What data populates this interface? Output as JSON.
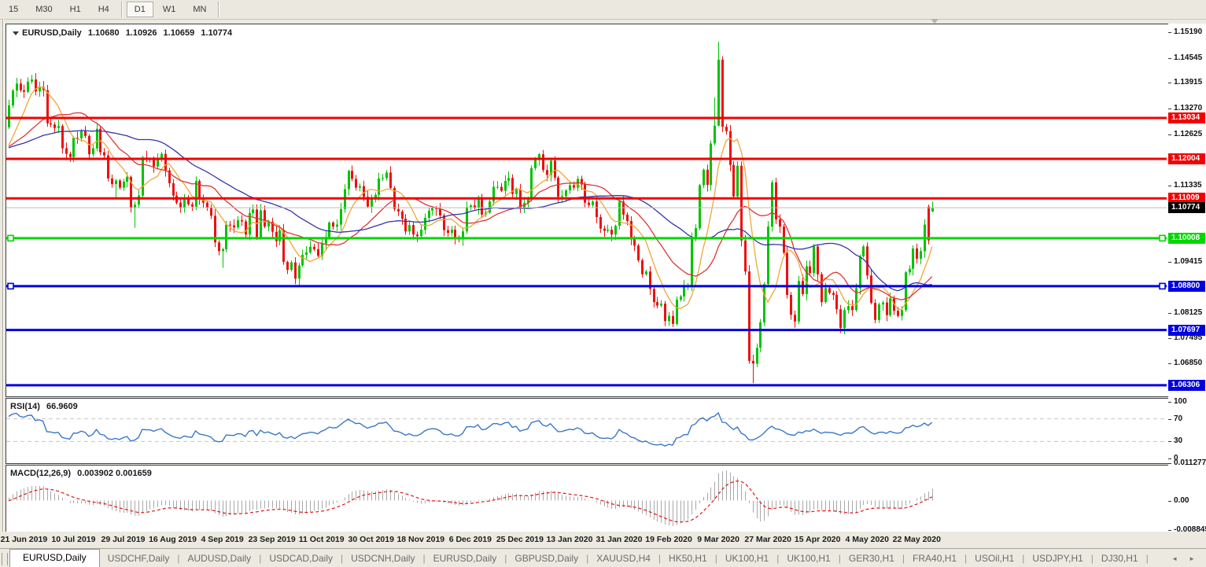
{
  "toolbar": {
    "timeframes": [
      "15",
      "M30",
      "H1",
      "H4",
      "D1",
      "W1",
      "MN"
    ],
    "active": "D1"
  },
  "chart": {
    "title": {
      "symbol": "EURUSD,Daily",
      "open": "1.10680",
      "high": "1.10926",
      "low": "1.10659",
      "close": "1.10774"
    }
  },
  "rsi": {
    "name": "RSI(14)",
    "value": "66.9609",
    "axis": [
      "100",
      "70",
      "30",
      "0"
    ],
    "guide_levels": [
      70,
      30
    ]
  },
  "macd": {
    "name": "MACD(12,26,9)",
    "value": "0.003902 0.001659",
    "axis": [
      "0.011277",
      "0.00",
      "-0.008845"
    ]
  },
  "tabs": {
    "items": [
      "EURUSD,Daily",
      "USDCHF,Daily",
      "AUDUSD,Daily",
      "USDCAD,Daily",
      "USDCNH,Daily",
      "EURUSD,Daily",
      "GBPUSD,Daily",
      "XAUUSD,H4",
      "HK50,H1",
      "UK100,H1",
      "UK100,H1",
      "GER30,H1",
      "FRA40,H1",
      "USOil,H1",
      "USDJPY,H1",
      "DJ30,H1"
    ],
    "active_index": 0,
    "scroll_left_icon": "◄",
    "scroll_right_icon": "►"
  },
  "colors": {
    "up": "#00c400",
    "down": "#ee0f0f",
    "ma_fast": "#efa638",
    "ma_mid": "#e03535",
    "ma_slow": "#3434ad",
    "red": "#f40000",
    "green": "#00d800",
    "blue": "#0000e0",
    "current_line": "#bcbcbc",
    "current_badge_bg": "#000000",
    "rsi_line": "#3878c8",
    "rsi_guide": "#c4c4c4",
    "macd_hist": "#a8a8a8",
    "macd_signal": "#e01414"
  },
  "chart_data": {
    "type": "candlestick",
    "symbol": "EURUSD",
    "timeframe": "Daily",
    "current_price": 1.10774,
    "last_candle": {
      "open": 1.1068,
      "high": 1.10926,
      "low": 1.10659,
      "close": 1.10774
    },
    "price_axis_ticks": [
      "1.15190",
      "1.14545",
      "1.13915",
      "1.13270",
      "1.12625",
      "1.11335",
      "1.09415",
      "1.08125",
      "1.07495",
      "1.06850",
      "1.06205"
    ],
    "levels": [
      {
        "value": "1.13034",
        "price": 1.13034,
        "color": "red"
      },
      {
        "value": "1.12004",
        "price": 1.12004,
        "color": "red"
      },
      {
        "value": "1.11009",
        "price": 1.11009,
        "color": "red"
      },
      {
        "value": "1.10008",
        "price": 1.10008,
        "color": "green",
        "handles": true
      },
      {
        "value": "1.08800",
        "price": 1.088,
        "color": "blue",
        "handles": true
      },
      {
        "value": "1.07697",
        "price": 1.07697,
        "color": "blue"
      },
      {
        "value": "1.06306",
        "price": 1.06306,
        "color": "blue"
      }
    ],
    "date_labels": [
      "21 Jun 2019",
      "10 Jul 2019",
      "29 Jul 2019",
      "16 Aug 2019",
      "4 Sep 2019",
      "23 Sep 2019",
      "11 Oct 2019",
      "30 Oct 2019",
      "18 Nov 2019",
      "6 Dec 2019",
      "25 Dec 2019",
      "13 Jan 2020",
      "31 Jan 2020",
      "19 Feb 2020",
      "9 Mar 2020",
      "27 Mar 2020",
      "15 Apr 2020",
      "4 May 2020",
      "22 May 2020"
    ],
    "first_label_bar": 4,
    "label_step_bars": 13,
    "moving_averages": [
      {
        "period": 8,
        "color_key": "ma_fast"
      },
      {
        "period": 20,
        "color_key": "ma_mid"
      },
      {
        "period": 40,
        "color_key": "ma_slow"
      }
    ],
    "indicators": {
      "rsi_period": 14,
      "macd": [
        12,
        26,
        9
      ]
    },
    "pre_closes": [
      1.1245,
      1.125,
      1.1262,
      1.127,
      1.1258,
      1.1245,
      1.1238,
      1.123,
      1.1222,
      1.121,
      1.1205,
      1.1198,
      1.119,
      1.1182,
      1.119,
      1.12,
      1.121,
      1.1222,
      1.123,
      1.124,
      1.125,
      1.1258,
      1.125,
      1.1242,
      1.1235,
      1.1228,
      1.122,
      1.1212,
      1.1205,
      1.1215,
      1.1225,
      1.1235,
      1.1228,
      1.122,
      1.1212,
      1.1205,
      1.12,
      1.1195,
      1.123,
      1.128
    ],
    "closes": [
      1.1335,
      1.1372,
      1.139,
      1.1373,
      1.1369,
      1.1395,
      1.14,
      1.137,
      1.138,
      1.1373,
      1.129,
      1.1287,
      1.1278,
      1.1283,
      1.1227,
      1.1213,
      1.1205,
      1.1253,
      1.1252,
      1.127,
      1.1258,
      1.1212,
      1.1227,
      1.1276,
      1.1217,
      1.1209,
      1.1151,
      1.1137,
      1.1146,
      1.1128,
      1.1143,
      1.1155,
      1.1077,
      1.1085,
      1.1108,
      1.1204,
      1.12,
      1.1199,
      1.1181,
      1.1199,
      1.1213,
      1.1171,
      1.1139,
      1.1108,
      1.109,
      1.1078,
      1.11,
      1.1086,
      1.108,
      1.1145,
      1.1101,
      1.109,
      1.1078,
      1.1057,
      1.099,
      1.0968,
      1.0973,
      1.1035,
      1.1033,
      1.1028,
      1.1046,
      1.1043,
      1.101,
      1.1064,
      1.1073,
      1.1003,
      1.1071,
      1.103,
      1.1042,
      1.1017,
      1.0993,
      1.1021,
      1.0941,
      1.0921,
      1.094,
      1.0899,
      1.0932,
      1.0959,
      1.0965,
      1.0979,
      1.0973,
      1.0956,
      1.0987,
      1.1004,
      1.104,
      1.103,
      1.1035,
      1.1074,
      1.1124,
      1.117,
      1.115,
      1.1128,
      1.1132,
      1.1105,
      1.108,
      1.1099,
      1.111,
      1.1151,
      1.1152,
      1.1166,
      1.1127,
      1.1074,
      1.1068,
      1.105,
      1.1018,
      1.1034,
      1.101,
      1.1006,
      1.1022,
      1.1052,
      1.107,
      1.1077,
      1.1074,
      1.1058,
      1.1021,
      1.1014,
      1.1022,
      1.1001,
      1.0998,
      1.1018,
      1.1079,
      1.1083,
      1.1077,
      1.1104,
      1.106,
      1.1065,
      1.1093,
      1.113,
      1.113,
      1.112,
      1.1145,
      1.1152,
      1.1112,
      1.1123,
      1.1077,
      1.1089,
      1.1098,
      1.1177,
      1.1199,
      1.1212,
      1.1172,
      1.116,
      1.1196,
      1.1153,
      1.1105,
      1.1107,
      1.1121,
      1.1134,
      1.1128,
      1.115,
      1.1136,
      1.109,
      1.1084,
      1.1093,
      1.1054,
      1.1025,
      1.1019,
      1.1022,
      1.101,
      1.1032,
      1.1093,
      1.106,
      1.1044,
      1.0998,
      1.0982,
      1.0945,
      1.091,
      1.0917,
      1.0873,
      1.084,
      1.0831,
      1.0836,
      1.0792,
      1.0805,
      1.0785,
      1.0846,
      1.0854,
      1.088,
      1.088,
      1.1,
      1.1026,
      1.1134,
      1.1173,
      1.1135,
      1.1239,
      1.1284,
      1.145,
      1.1281,
      1.127,
      1.1185,
      1.1106,
      1.1183,
      1.0995,
      1.0917,
      1.0692,
      1.0685,
      1.0725,
      1.0789,
      1.0885,
      1.103,
      1.1141,
      1.1048,
      1.103,
      1.0964,
      1.0858,
      1.0808,
      1.0791,
      1.0893,
      1.086,
      1.093,
      1.0913,
      1.098,
      1.091,
      1.084,
      1.0875,
      1.0863,
      1.0858,
      1.0822,
      1.0775,
      1.082,
      1.083,
      1.082,
      1.0875,
      1.0955,
      1.098,
      1.0907,
      1.0838,
      1.0795,
      1.0834,
      1.0839,
      1.0807,
      1.0849,
      1.0818,
      1.0805,
      1.082,
      1.0915,
      1.0924,
      1.0975,
      1.0949,
      1.0968,
      1.1035,
      1.0995,
      1.10774
    ],
    "open_overrides": {
      "241": 1.108,
      "242": 1.1068
    },
    "wick_overrides": {
      "6": [
        1.1412,
        null
      ],
      "16": [
        null,
        1.1193
      ],
      "28": [
        null,
        1.1101
      ],
      "33": [
        null,
        1.1027
      ],
      "56": [
        null,
        1.0926
      ],
      "76": [
        null,
        1.0879
      ],
      "174": [
        null,
        1.0777
      ],
      "185": [
        1.1355,
        null
      ],
      "186": [
        1.1495,
        1.1282
      ],
      "195": [
        null,
        1.0636
      ],
      "200": [
        1.1147,
        null
      ],
      "241": [
        1.1085,
        1.0985
      ],
      "242": [
        1.10926,
        1.10659
      ]
    }
  }
}
